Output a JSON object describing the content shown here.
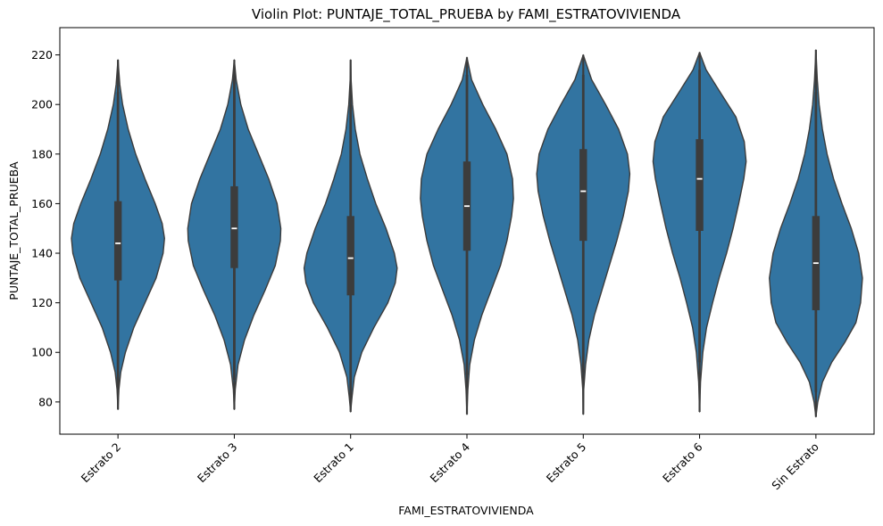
{
  "chart_data": {
    "type": "violin",
    "title": "Violin Plot: PUNTAJE_TOTAL_PRUEBA by FAMI_ESTRATOVIVIENDA",
    "xlabel": "FAMI_ESTRATOVIVIENDA",
    "ylabel": "PUNTAJE_TOTAL_PRUEBA",
    "ylim": [
      67,
      231
    ],
    "yticks": [
      80,
      100,
      120,
      140,
      160,
      180,
      200,
      220
    ],
    "grid": false,
    "color": "#3274a1",
    "edge_color": "#3c3c3c",
    "categories": [
      "Estrato 2",
      "Estrato 3",
      "Estrato 1",
      "Estrato 4",
      "Estrato 5",
      "Estrato 6",
      "Sin Estrato"
    ],
    "series": [
      {
        "category": "Estrato 2",
        "min": 77,
        "q1": 129,
        "median": 144,
        "q3": 161,
        "max": 218,
        "whisker_low": 85,
        "whisker_high": 205,
        "density": [
          [
            77,
            0.0
          ],
          [
            85,
            0.02
          ],
          [
            92,
            0.06
          ],
          [
            100,
            0.16
          ],
          [
            110,
            0.34
          ],
          [
            120,
            0.58
          ],
          [
            130,
            0.82
          ],
          [
            140,
            0.97
          ],
          [
            146,
            1.0
          ],
          [
            152,
            0.95
          ],
          [
            160,
            0.8
          ],
          [
            170,
            0.58
          ],
          [
            180,
            0.38
          ],
          [
            190,
            0.22
          ],
          [
            200,
            0.1
          ],
          [
            208,
            0.04
          ],
          [
            218,
            0.0
          ]
        ]
      },
      {
        "category": "Estrato 3",
        "min": 77,
        "q1": 134,
        "median": 150,
        "q3": 167,
        "max": 218,
        "whisker_low": 89,
        "whisker_high": 211,
        "density": [
          [
            77,
            0.0
          ],
          [
            85,
            0.02
          ],
          [
            95,
            0.08
          ],
          [
            105,
            0.22
          ],
          [
            115,
            0.42
          ],
          [
            125,
            0.66
          ],
          [
            135,
            0.88
          ],
          [
            145,
            0.99
          ],
          [
            150,
            1.0
          ],
          [
            160,
            0.92
          ],
          [
            170,
            0.74
          ],
          [
            180,
            0.52
          ],
          [
            190,
            0.3
          ],
          [
            200,
            0.14
          ],
          [
            210,
            0.04
          ],
          [
            218,
            0.0
          ]
        ]
      },
      {
        "category": "Estrato 1",
        "min": 76,
        "q1": 123,
        "median": 138,
        "q3": 155,
        "max": 218,
        "whisker_low": 81,
        "whisker_high": 200,
        "density": [
          [
            76,
            0.0
          ],
          [
            82,
            0.03
          ],
          [
            90,
            0.08
          ],
          [
            100,
            0.24
          ],
          [
            110,
            0.5
          ],
          [
            120,
            0.8
          ],
          [
            128,
            0.96
          ],
          [
            134,
            1.0
          ],
          [
            140,
            0.94
          ],
          [
            150,
            0.76
          ],
          [
            160,
            0.54
          ],
          [
            170,
            0.36
          ],
          [
            180,
            0.2
          ],
          [
            190,
            0.1
          ],
          [
            200,
            0.04
          ],
          [
            210,
            0.01
          ],
          [
            218,
            0.0
          ]
        ]
      },
      {
        "category": "Estrato 4",
        "min": 75,
        "q1": 141,
        "median": 159,
        "q3": 177,
        "max": 219,
        "whisker_low": 91,
        "whisker_high": 212,
        "density": [
          [
            75,
            0.0
          ],
          [
            85,
            0.02
          ],
          [
            95,
            0.06
          ],
          [
            105,
            0.16
          ],
          [
            115,
            0.32
          ],
          [
            125,
            0.52
          ],
          [
            135,
            0.72
          ],
          [
            145,
            0.86
          ],
          [
            155,
            0.96
          ],
          [
            162,
            1.0
          ],
          [
            170,
            0.98
          ],
          [
            180,
            0.86
          ],
          [
            190,
            0.62
          ],
          [
            200,
            0.34
          ],
          [
            210,
            0.1
          ],
          [
            219,
            0.0
          ]
        ]
      },
      {
        "category": "Estrato 5",
        "min": 75,
        "q1": 145,
        "median": 165,
        "q3": 182,
        "max": 220,
        "whisker_low": 92,
        "whisker_high": 212,
        "density": [
          [
            75,
            0.0
          ],
          [
            85,
            0.01
          ],
          [
            95,
            0.05
          ],
          [
            105,
            0.12
          ],
          [
            115,
            0.24
          ],
          [
            125,
            0.4
          ],
          [
            135,
            0.56
          ],
          [
            145,
            0.72
          ],
          [
            155,
            0.86
          ],
          [
            165,
            0.97
          ],
          [
            172,
            1.0
          ],
          [
            180,
            0.95
          ],
          [
            190,
            0.76
          ],
          [
            200,
            0.48
          ],
          [
            210,
            0.18
          ],
          [
            220,
            0.0
          ]
        ]
      },
      {
        "category": "Estrato 6",
        "min": 76,
        "q1": 149,
        "median": 170,
        "q3": 186,
        "max": 221,
        "whisker_low": 96,
        "whisker_high": 214,
        "density": [
          [
            76,
            0.0
          ],
          [
            88,
            0.02
          ],
          [
            100,
            0.07
          ],
          [
            110,
            0.15
          ],
          [
            120,
            0.28
          ],
          [
            130,
            0.42
          ],
          [
            140,
            0.58
          ],
          [
            150,
            0.72
          ],
          [
            160,
            0.84
          ],
          [
            170,
            0.95
          ],
          [
            177,
            1.0
          ],
          [
            185,
            0.96
          ],
          [
            195,
            0.78
          ],
          [
            205,
            0.44
          ],
          [
            214,
            0.14
          ],
          [
            221,
            0.0
          ]
        ]
      },
      {
        "category": "Sin Estrato",
        "min": 74,
        "q1": 117,
        "median": 136,
        "q3": 155,
        "max": 222,
        "whisker_low": 84,
        "whisker_high": 205,
        "density": [
          [
            74,
            0.0
          ],
          [
            80,
            0.04
          ],
          [
            88,
            0.14
          ],
          [
            96,
            0.34
          ],
          [
            104,
            0.62
          ],
          [
            112,
            0.86
          ],
          [
            120,
            0.96
          ],
          [
            130,
            1.0
          ],
          [
            140,
            0.92
          ],
          [
            150,
            0.76
          ],
          [
            160,
            0.56
          ],
          [
            170,
            0.38
          ],
          [
            180,
            0.24
          ],
          [
            190,
            0.14
          ],
          [
            200,
            0.07
          ],
          [
            210,
            0.03
          ],
          [
            222,
            0.0
          ]
        ]
      }
    ]
  }
}
